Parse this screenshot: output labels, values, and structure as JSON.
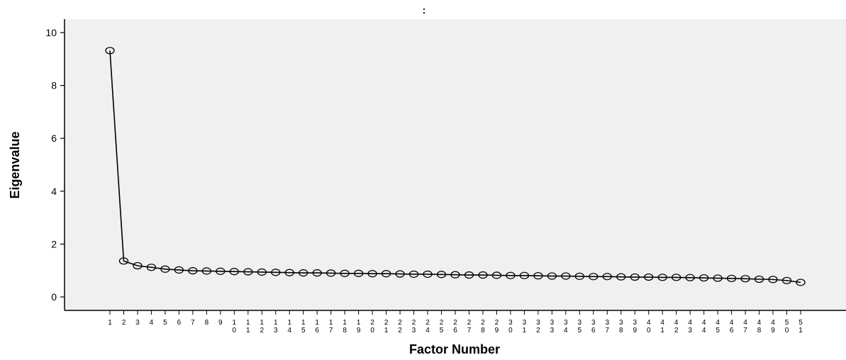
{
  "chart_data": {
    "type": "line",
    "title": ":",
    "xlabel": "Factor Number",
    "ylabel": "Eigenvalue",
    "ylim": [
      0,
      10
    ],
    "yticks": [
      "0",
      "2",
      "4",
      "6",
      "8",
      "10"
    ],
    "x": [
      1,
      2,
      3,
      4,
      5,
      6,
      7,
      8,
      9,
      10,
      11,
      12,
      13,
      14,
      15,
      16,
      17,
      18,
      19,
      20,
      21,
      22,
      23,
      24,
      25,
      26,
      27,
      28,
      29,
      30,
      31,
      32,
      33,
      34,
      35,
      36,
      37,
      38,
      39,
      40,
      41,
      42,
      43,
      44,
      45,
      46,
      47,
      48,
      49,
      50,
      51
    ],
    "xtick_labels": [
      "1",
      "2",
      "3",
      "4",
      "5",
      "6",
      "7",
      "8",
      "9",
      "1\n0",
      "1\n1",
      "1\n2",
      "1\n3",
      "1\n4",
      "1\n5",
      "1\n6",
      "1\n7",
      "1\n8",
      "1\n9",
      "2\n0",
      "2\n1",
      "2\n2",
      "2\n3",
      "2\n4",
      "2\n5",
      "2\n6",
      "2\n7",
      "2\n8",
      "2\n9",
      "3\n0",
      "3\n1",
      "3\n2",
      "3\n3",
      "3\n4",
      "3\n5",
      "3\n6",
      "3\n7",
      "3\n8",
      "3\n9",
      "4\n0",
      "4\n1",
      "4\n2",
      "4\n3",
      "4\n4",
      "4\n5",
      "4\n6",
      "4\n7",
      "4\n8",
      "4\n9",
      "5\n0",
      "5\n1"
    ],
    "values": [
      9.32,
      1.36,
      1.18,
      1.12,
      1.05,
      1.02,
      0.99,
      0.98,
      0.97,
      0.96,
      0.95,
      0.94,
      0.93,
      0.92,
      0.91,
      0.91,
      0.9,
      0.89,
      0.89,
      0.88,
      0.88,
      0.87,
      0.86,
      0.86,
      0.85,
      0.84,
      0.83,
      0.83,
      0.82,
      0.81,
      0.81,
      0.8,
      0.79,
      0.79,
      0.78,
      0.77,
      0.77,
      0.76,
      0.75,
      0.75,
      0.74,
      0.74,
      0.73,
      0.72,
      0.71,
      0.7,
      0.69,
      0.67,
      0.66,
      0.62,
      0.55
    ],
    "grid": false,
    "background": "#f0f0f0",
    "line_color": "#000000"
  }
}
